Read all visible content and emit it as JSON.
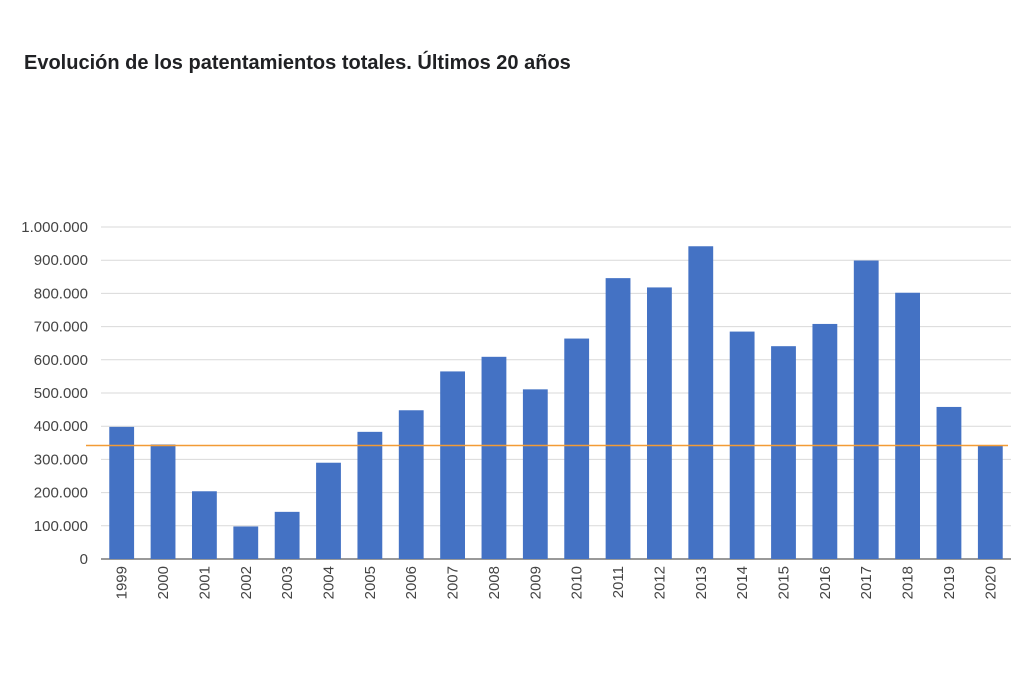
{
  "chart_data": {
    "type": "bar",
    "title": "Evolución de los patentamientos totales. Últimos 20 años",
    "categories": [
      "1999",
      "2000",
      "2001",
      "2002",
      "2003",
      "2004",
      "2005",
      "2006",
      "2007",
      "2008",
      "2009",
      "2010",
      "2011",
      "2012",
      "2013",
      "2014",
      "2015",
      "2016",
      "2017",
      "2018",
      "2019",
      "2020"
    ],
    "series": [
      {
        "values": [
          398000,
          345000,
          204000,
          98000,
          142000,
          290000,
          383000,
          448000,
          565000,
          609000,
          511000,
          664000,
          846000,
          818000,
          942000,
          685000,
          641000,
          708000,
          899000,
          802000,
          458000,
          342000
        ],
        "color": "#4472c4"
      }
    ],
    "reference_line": {
      "value": 342000,
      "color": "#f29b35"
    },
    "y_ticks": [
      "0",
      "100.000",
      "200.000",
      "300.000",
      "400.000",
      "500.000",
      "600.000",
      "700.000",
      "800.000",
      "900.000",
      "1.000.000"
    ],
    "ylim": [
      0,
      1000000
    ],
    "grid": true,
    "grid_color": "#d9d9d9",
    "x_tick_orientation": "vertical"
  }
}
